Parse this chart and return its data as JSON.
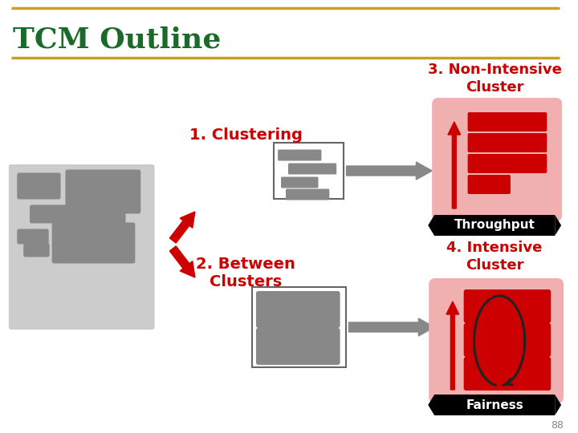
{
  "title": "TCM Outline",
  "title_color": "#1a6b2a",
  "title_fontsize": 26,
  "gold_line_color": "#c8a020",
  "bg_color": "#ffffff",
  "label1": "1. Clustering",
  "label2": "2. Between\nClusters",
  "label3": "3. Non-Intensive\nCluster",
  "label4": "4. Intensive\nCluster",
  "throughput_label": "Throughput",
  "fairness_label": "Fairness",
  "red_color": "#cc0000",
  "light_red_bg": "#f0b0b0",
  "gray_color": "#888888",
  "light_gray": "#cccccc",
  "mid_gray": "#999999",
  "dark_gray": "#666666",
  "black": "#000000",
  "white": "#ffffff",
  "page_num": "88"
}
